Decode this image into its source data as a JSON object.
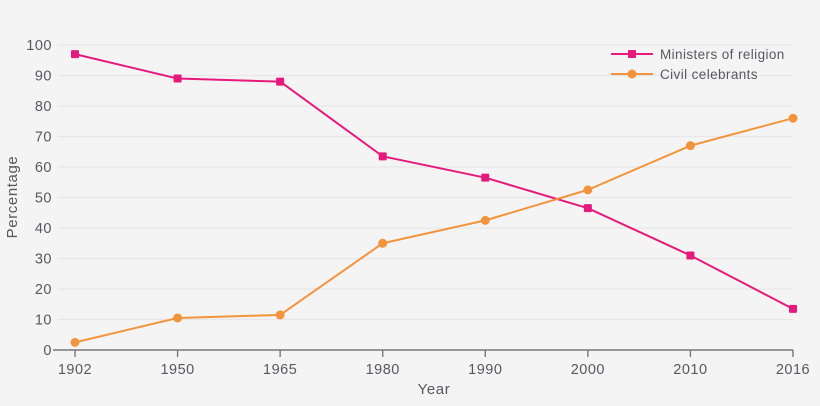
{
  "colors": {
    "background": "#f5f4f5",
    "gridline": "#e8e6e8",
    "axis": "#76777a",
    "text": "#58585b",
    "pink": "#e6197c",
    "orange": "#f2943b"
  },
  "chart_data": {
    "type": "line",
    "title": "",
    "categories": [
      "1902",
      "1950",
      "1965",
      "1980",
      "1990",
      "2000",
      "2010",
      "2016"
    ],
    "series": [
      {
        "name": "Ministers of religion",
        "color": "#e6197c",
        "marker": "square",
        "values": [
          97,
          89,
          88,
          63.5,
          56.5,
          46.5,
          31,
          13.5
        ]
      },
      {
        "name": "Civil celebrants",
        "color": "#f2943b",
        "marker": "circle",
        "values": [
          2.5,
          10.5,
          11.5,
          35,
          42.5,
          52.5,
          67,
          76
        ]
      }
    ],
    "xlabel": "Year",
    "ylabel": "Percentage",
    "ylim": [
      0,
      100
    ],
    "yticks": [
      0,
      10,
      20,
      30,
      40,
      50,
      60,
      70,
      80,
      90,
      100
    ],
    "grid": true,
    "legend_position": "top-right"
  }
}
